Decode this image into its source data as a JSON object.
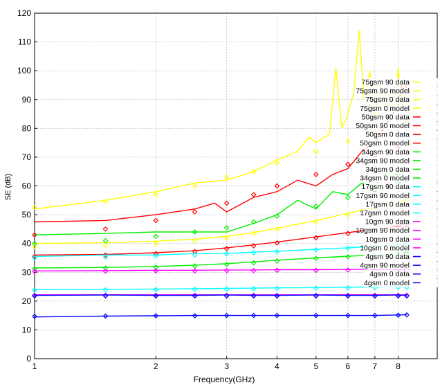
{
  "chart_data": {
    "type": "line",
    "xlabel": "Frequency(GHz)",
    "ylabel": "SE (dB)",
    "x_scale": "log",
    "xlim": [
      1,
      10
    ],
    "ylim": [
      0,
      120
    ],
    "x_ticks": [
      1,
      2,
      3,
      4,
      5,
      6,
      7,
      8
    ],
    "x_tick_labels": [
      "1",
      "2",
      "3",
      "4",
      "5",
      "6",
      "7",
      "8"
    ],
    "y_ticks": [
      0,
      10,
      20,
      30,
      40,
      50,
      60,
      70,
      80,
      90,
      100,
      110,
      120
    ],
    "y_tick_labels": [
      "0",
      "10",
      "20",
      "30",
      "40",
      "50",
      "60",
      "70",
      "80",
      "90",
      "100",
      "110",
      "120"
    ],
    "grid": true,
    "legend_position": "right",
    "series": [
      {
        "name": "75gsm 90 data",
        "style": "line",
        "color": "#ffff00",
        "x": [
          1.0,
          1.5,
          2.0,
          2.5,
          3.0,
          3.5,
          4.0,
          4.5,
          4.8,
          5.0,
          5.4,
          5.6,
          5.8,
          6.0,
          6.2,
          6.4,
          6.6,
          6.8,
          7.0,
          7.2,
          7.4,
          7.6,
          7.8,
          8.0,
          8.2,
          8.4
        ],
        "y": [
          52,
          55,
          58,
          61,
          62,
          65,
          69,
          72,
          77,
          75,
          78,
          101,
          80,
          85,
          92,
          114,
          88,
          100,
          84,
          96,
          87,
          92,
          85,
          101,
          88,
          95
        ]
      },
      {
        "name": "75gsm 90 model",
        "style": "markers",
        "color": "#ffff00",
        "x": [
          1.0,
          1.5,
          2.0,
          2.5,
          3.0,
          3.5,
          4.0,
          5.0,
          6.0,
          7.0,
          8.0,
          8.4
        ],
        "y": [
          52.5,
          54.5,
          57,
          60,
          63,
          65,
          68,
          72,
          75.5,
          78.5,
          81,
          82
        ]
      },
      {
        "name": "75gsm 0 data",
        "style": "line",
        "color": "#ffff00",
        "x": [
          1.0,
          1.5,
          2.0,
          2.5,
          3.0,
          3.5,
          4.0,
          5.0,
          6.0,
          7.0,
          8.0,
          8.4
        ],
        "y": [
          40,
          40.3,
          40.8,
          41.5,
          42.5,
          43.8,
          45.3,
          48,
          50.5,
          52.5,
          54.5,
          55.5
        ]
      },
      {
        "name": "75gsm 0 model",
        "style": "markers",
        "color": "#ffff00",
        "x": [
          1.0,
          1.5,
          2.0,
          2.5,
          3.0,
          3.5,
          4.0,
          5.0,
          6.0,
          7.0,
          8.0,
          8.4
        ],
        "y": [
          39,
          39.5,
          40,
          41,
          42,
          43.5,
          45,
          47.5,
          50,
          52,
          54,
          55
        ]
      },
      {
        "name": "50gsm 90 data",
        "style": "line",
        "color": "#ff0000",
        "x": [
          1.0,
          1.5,
          2.0,
          2.5,
          2.8,
          3.0,
          3.5,
          4.0,
          4.5,
          5.0,
          5.5,
          6.0,
          6.5,
          7.0,
          7.5,
          8.0,
          8.2,
          8.4
        ],
        "y": [
          47.5,
          48,
          50,
          52,
          54,
          51,
          56,
          58,
          62,
          60,
          64,
          66,
          72,
          75,
          82,
          88,
          96,
          94
        ]
      },
      {
        "name": "50gsm 90 model",
        "style": "markers",
        "color": "#ff0000",
        "x": [
          1.0,
          1.5,
          2.0,
          2.5,
          3.0,
          3.5,
          4.0,
          5.0,
          6.0,
          7.0,
          8.0,
          8.4
        ],
        "y": [
          43,
          45,
          48,
          51,
          54,
          57,
          60,
          64,
          67.5,
          70.5,
          73.5,
          74.5
        ]
      },
      {
        "name": "50gsm 0 data",
        "style": "line",
        "color": "#ff0000",
        "x": [
          1.0,
          1.5,
          2.0,
          2.5,
          3.0,
          3.5,
          4.0,
          5.0,
          6.0,
          7.0,
          8.0,
          8.4
        ],
        "y": [
          36,
          36.2,
          36.8,
          37.5,
          38.5,
          39.5,
          40.5,
          42.3,
          43.8,
          45,
          46,
          46.5
        ]
      },
      {
        "name": "50gsm 0 model",
        "style": "markers",
        "color": "#ff0000",
        "x": [
          1.0,
          1.5,
          2.0,
          2.5,
          3.0,
          3.5,
          4.0,
          5.0,
          6.0,
          7.0,
          8.0,
          8.4
        ],
        "y": [
          35.5,
          36,
          36.5,
          37.2,
          38.2,
          39.2,
          40.2,
          42,
          43.5,
          44.7,
          45.8,
          46.3
        ]
      },
      {
        "name": "34gsm 90 data",
        "style": "line",
        "color": "#00ee00",
        "x": [
          1.0,
          1.5,
          2.0,
          2.5,
          3.0,
          3.5,
          4.0,
          4.5,
          5.0,
          5.5,
          6.0,
          6.5,
          7.0,
          7.5,
          8.0,
          8.4
        ],
        "y": [
          43,
          43.5,
          44,
          44,
          44,
          47,
          50,
          55,
          52,
          58,
          57,
          61,
          60,
          65,
          64,
          62
        ]
      },
      {
        "name": "34gsm 90 model",
        "style": "markers",
        "color": "#00ee00",
        "x": [
          1.0,
          1.5,
          2.0,
          2.5,
          3.0,
          3.5,
          4.0,
          5.0,
          6.0,
          7.0,
          8.0,
          8.4
        ],
        "y": [
          40,
          41,
          42.5,
          44,
          45.5,
          47.5,
          49.5,
          53,
          56,
          58.5,
          61,
          62
        ]
      },
      {
        "name": "34gsm 0 data",
        "style": "line",
        "color": "#00ee00",
        "x": [
          1.0,
          1.5,
          2.0,
          2.5,
          3.0,
          3.5,
          4.0,
          5.0,
          6.0,
          7.0,
          8.0,
          8.4
        ],
        "y": [
          31.5,
          31.7,
          32,
          32.5,
          33,
          33.6,
          34.2,
          35,
          35.6,
          36,
          36.5,
          36.8
        ]
      },
      {
        "name": "34gsm 0 model",
        "style": "markers",
        "color": "#00ee00",
        "x": [
          1.0,
          1.5,
          2.0,
          2.5,
          3.0,
          3.5,
          4.0,
          5.0,
          6.0,
          7.0,
          8.0,
          8.4
        ],
        "y": [
          31.2,
          31.5,
          31.8,
          32.2,
          32.7,
          33.3,
          33.9,
          34.8,
          35.4,
          35.9,
          36.3,
          36.6
        ]
      },
      {
        "name": "17gsm 90 data",
        "style": "line",
        "color": "#00ffff",
        "x": [
          1.0,
          1.5,
          2.0,
          2.5,
          3.0,
          3.5,
          4.0,
          5.0,
          6.0,
          7.0,
          8.0,
          8.4
        ],
        "y": [
          35.5,
          36,
          36,
          36.5,
          36.5,
          37,
          37.3,
          38,
          38.5,
          39,
          39.5,
          39.8
        ]
      },
      {
        "name": "17gsm 90 model",
        "style": "markers",
        "color": "#00ffff",
        "x": [
          1.0,
          1.5,
          2.0,
          2.5,
          3.0,
          3.5,
          4.0,
          5.0,
          6.0,
          7.0,
          8.0,
          8.4
        ],
        "y": [
          35,
          35.3,
          35.7,
          36,
          36.4,
          36.8,
          37.2,
          37.8,
          38.4,
          38.9,
          39.3,
          39.5
        ]
      },
      {
        "name": "17gsm 0 data",
        "style": "line",
        "color": "#00ffff",
        "x": [
          1.0,
          1.5,
          2.0,
          2.5,
          3.0,
          3.5,
          4.0,
          5.0,
          6.0,
          7.0,
          8.0,
          8.4
        ],
        "y": [
          24,
          24.1,
          24.2,
          24.3,
          24.4,
          24.5,
          24.6,
          24.7,
          24.8,
          24.9,
          25,
          25
        ]
      },
      {
        "name": "17gsm 0 model",
        "style": "markers",
        "color": "#00ffff",
        "x": [
          1.0,
          1.5,
          2.0,
          2.5,
          3.0,
          3.5,
          4.0,
          5.0,
          6.0,
          7.0,
          8.0,
          8.4
        ],
        "y": [
          23.8,
          23.9,
          24,
          24.1,
          24.2,
          24.3,
          24.4,
          24.5,
          24.6,
          24.7,
          24.8,
          24.8
        ]
      },
      {
        "name": "10gm 90 data",
        "style": "line",
        "color": "#ff00ff",
        "x": [
          1.0,
          1.5,
          2.0,
          2.5,
          3.0,
          3.5,
          4.0,
          5.0,
          6.0,
          7.0,
          8.0,
          8.4
        ],
        "y": [
          30.5,
          30.6,
          30.7,
          30.7,
          30.8,
          30.8,
          30.9,
          30.9,
          31,
          31,
          31,
          31
        ]
      },
      {
        "name": "10gsm 90 model",
        "style": "markers",
        "color": "#ff00ff",
        "x": [
          1.0,
          1.5,
          2.0,
          2.5,
          3.0,
          3.5,
          4.0,
          5.0,
          6.0,
          7.0,
          8.0,
          8.4
        ],
        "y": [
          30.3,
          30.4,
          30.5,
          30.5,
          30.6,
          30.6,
          30.7,
          30.7,
          30.8,
          30.8,
          30.8,
          30.9
        ]
      },
      {
        "name": "10gsm 0 data",
        "style": "line",
        "color": "#ff00ff",
        "x": [
          1.0,
          1.5,
          2.0,
          2.5,
          3.0,
          3.5,
          4.0,
          5.0,
          6.0,
          7.0,
          8.0,
          8.4
        ],
        "y": [
          22.2,
          22.2,
          22.2,
          22.2,
          22.2,
          22.2,
          22.2,
          22.2,
          22.2,
          22.2,
          22.2,
          22.2
        ]
      },
      {
        "name": "10gsm 0 model",
        "style": "markers",
        "color": "#ff00ff",
        "x": [
          1.0,
          1.5,
          2.0,
          2.5,
          3.0,
          3.5,
          4.0,
          5.0,
          6.0,
          7.0,
          8.0,
          8.4
        ],
        "y": [
          22,
          22,
          22,
          22,
          22,
          22,
          22,
          22,
          22,
          22,
          22,
          22
        ]
      },
      {
        "name": "4gsm 90 data",
        "style": "line",
        "color": "#0000ff",
        "x": [
          1.0,
          1.5,
          2.0,
          2.5,
          3.0,
          3.5,
          4.0,
          5.0,
          6.0,
          7.0,
          8.0,
          8.4
        ],
        "y": [
          22,
          22.1,
          22,
          22,
          22.1,
          22,
          22,
          22.1,
          22,
          22,
          22.1,
          22
        ]
      },
      {
        "name": "4gsm 90 model",
        "style": "markers",
        "color": "#0000ff",
        "x": [
          1.0,
          1.5,
          2.0,
          2.5,
          3.0,
          3.5,
          4.0,
          5.0,
          6.0,
          7.0,
          8.0,
          8.4
        ],
        "y": [
          21.8,
          21.8,
          21.8,
          21.8,
          21.8,
          21.8,
          21.8,
          21.8,
          21.8,
          21.8,
          21.8,
          21.8
        ]
      },
      {
        "name": "4gsm 0 data",
        "style": "line",
        "color": "#0000ff",
        "x": [
          1.0,
          1.5,
          2.0,
          2.5,
          3.0,
          3.5,
          4.0,
          5.0,
          6.0,
          7.0,
          8.0,
          8.4
        ],
        "y": [
          14.5,
          14.8,
          14.9,
          15,
          15,
          15,
          15,
          15,
          15,
          15,
          15.2,
          15.3
        ]
      },
      {
        "name": "4gsm 0 model",
        "style": "markers",
        "color": "#0000ff",
        "x": [
          1.0,
          1.5,
          2.0,
          2.5,
          3.0,
          3.5,
          4.0,
          5.0,
          6.0,
          7.0,
          8.0,
          8.4
        ],
        "y": [
          14.7,
          14.8,
          14.9,
          14.9,
          15,
          15,
          15,
          15,
          15,
          15,
          15.1,
          15.2
        ]
      }
    ]
  }
}
